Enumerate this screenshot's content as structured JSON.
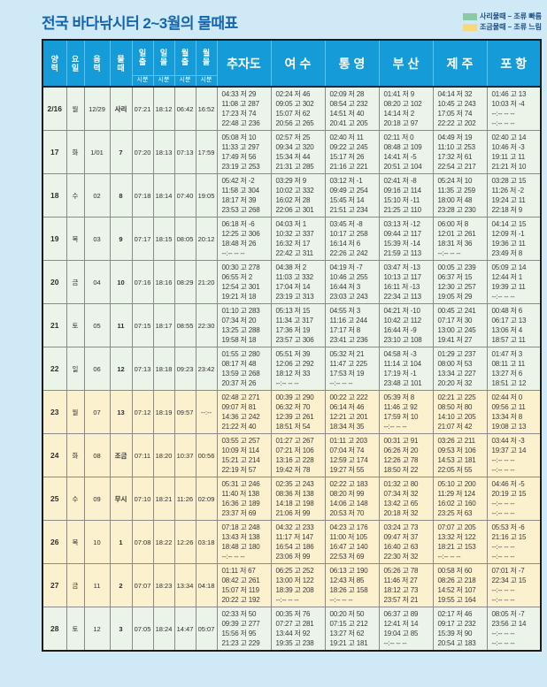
{
  "page": {
    "title": "전국 바다낚시터 2~3월의 물때표",
    "legend": [
      {
        "label": "사리물때 – 조류 빠름",
        "color": "#8bcba4"
      },
      {
        "label": "조금물때 – 조류 느림",
        "color": "#f7d87b"
      }
    ]
  },
  "table": {
    "left_headers": [
      "양력",
      "요일",
      "음력",
      "물때",
      "일출",
      "일몰",
      "월출",
      "월몰"
    ],
    "sub_header": "시분",
    "locations": [
      "추자도",
      "여 수",
      "통 영",
      "부 산",
      "제 주",
      "포 항"
    ],
    "location_keys": [
      "chujado",
      "yeosu",
      "tongyeong",
      "busan",
      "jeju",
      "pohang"
    ],
    "rows": [
      {
        "date": "2/16",
        "day": "월",
        "lunar": "12/29",
        "mulddae": "사리",
        "sunrise": "07:21",
        "sunset": "18:12",
        "moonrise": "06:42",
        "moonset": "16:52",
        "tint": "green",
        "tides": [
          [
            "04:33 저 29",
            "11:08 고 287",
            "17:23 저 74",
            "22:48 고 236"
          ],
          [
            "02:24 저 46",
            "09:05 고 302",
            "15:07 저 62",
            "20:56 고 265"
          ],
          [
            "02:09 저 28",
            "08:54 고 232",
            "14:51 저 40",
            "20:41 고 205"
          ],
          [
            "01:41 저 9",
            "08:20 고 102",
            "14:14 저 2",
            "20:18 고 97"
          ],
          [
            "04:14 저 32",
            "10:45 고 243",
            "17:05 저 74",
            "22:22 고 202"
          ],
          [
            "01:46 고 13",
            "10:03 저 -4",
            "--:-- -- --",
            "--:-- -- --"
          ]
        ]
      },
      {
        "date": "17",
        "day": "화",
        "lunar": "1/01",
        "mulddae": "7",
        "sunrise": "07:20",
        "sunset": "18:13",
        "moonrise": "07:13",
        "moonset": "17:59",
        "tint": "green",
        "tides": [
          [
            "05:08 저 10",
            "11:33 고 297",
            "17:49 저 56",
            "23:19 고 253"
          ],
          [
            "02:57 저 25",
            "09:34 고 320",
            "15:34 저 44",
            "21:31 고 285"
          ],
          [
            "02:40 저 11",
            "09:22 고 245",
            "15:17 저 26",
            "21:16 고 221"
          ],
          [
            "02:11 저 0",
            "08:48 고 109",
            "14:41 저 -5",
            "20:51 고 104"
          ],
          [
            "04:49 저 19",
            "11:10 고 253",
            "17:32 저 61",
            "22:54 고 217"
          ],
          [
            "02:40 고 14",
            "10:46 저 -3",
            "19:11 고 11",
            "21:21 저 10"
          ]
        ]
      },
      {
        "date": "18",
        "day": "수",
        "lunar": "02",
        "mulddae": "8",
        "sunrise": "07:18",
        "sunset": "18:14",
        "moonrise": "07:40",
        "moonset": "19:05",
        "tint": "green",
        "tides": [
          [
            "05:42 저 -2",
            "11:58 고 304",
            "18:17 저 39",
            "23:53 고 268"
          ],
          [
            "03:29 저 9",
            "10:02 고 332",
            "16:02 저 28",
            "22:06 고 301"
          ],
          [
            "03:12 저 -1",
            "09:49 고 254",
            "15:45 저 14",
            "21:51 고 234"
          ],
          [
            "02:41 저 -8",
            "09:16 고 114",
            "15:10 저 -11",
            "21:25 고 110"
          ],
          [
            "05:24 저 10",
            "11:35 고 259",
            "18:00 저 48",
            "23:28 고 230"
          ],
          [
            "03:28 고 15",
            "11:26 저 -2",
            "19:24 고 11",
            "22:18 저 9"
          ]
        ]
      },
      {
        "date": "19",
        "day": "목",
        "lunar": "03",
        "mulddae": "9",
        "sunrise": "07:17",
        "sunset": "18:15",
        "moonrise": "08:05",
        "moonset": "20:12",
        "tint": "green",
        "tides": [
          [
            "06:18 저 -6",
            "12:25 고 306",
            "18:48 저 26",
            "--:-- -- --"
          ],
          [
            "04:03 저 1",
            "10:32 고 337",
            "16:32 저 17",
            "22:42 고 311"
          ],
          [
            "03:45 저 -8",
            "10:17 고 258",
            "16:14 저 6",
            "22:26 고 242"
          ],
          [
            "03:13 저 -12",
            "09:44 고 117",
            "15:39 저 -14",
            "21:59 고 113"
          ],
          [
            "06:00 저 8",
            "12:01 고 261",
            "18:31 저 36",
            "--:-- -- --"
          ],
          [
            "04:14 고 15",
            "12:09 저 -1",
            "19:36 고 11",
            "23:49 저 8"
          ]
        ]
      },
      {
        "date": "20",
        "day": "금",
        "lunar": "04",
        "mulddae": "10",
        "sunrise": "07:16",
        "sunset": "18:16",
        "moonrise": "08:29",
        "moonset": "21:20",
        "tint": "green",
        "tides": [
          [
            "00:30 고 278",
            "06:55 저 2",
            "12:54 고 301",
            "19:21 저 18"
          ],
          [
            "04:38 저 2",
            "11:03 고 332",
            "17:04 저 14",
            "23:19 고 313"
          ],
          [
            "04:19 저 -7",
            "10:46 고 255",
            "16:44 저 3",
            "23:03 고 243"
          ],
          [
            "03:47 저 -13",
            "10:13 고 117",
            "16:11 저 -13",
            "22:34 고 113"
          ],
          [
            "00:05 고 239",
            "06:37 저 15",
            "12:30 고 257",
            "19:05 저 29"
          ],
          [
            "05:09 고 14",
            "12:44 저 1",
            "19:39 고 11",
            "--:-- -- --"
          ]
        ]
      },
      {
        "date": "21",
        "day": "토",
        "lunar": "05",
        "mulddae": "11",
        "sunrise": "07:15",
        "sunset": "18:17",
        "moonrise": "08:55",
        "moonset": "22:30",
        "tint": "green",
        "tides": [
          [
            "01:10 고 283",
            "07:34 저 20",
            "13:25 고 288",
            "19:58 저 18"
          ],
          [
            "05:13 저 15",
            "11:34 고 317",
            "17:36 저 19",
            "23:57 고 306"
          ],
          [
            "04:55 저 3",
            "11:16 고 244",
            "17:17 저 8",
            "23:41 고 236"
          ],
          [
            "04:21 저 -10",
            "10:42 고 112",
            "16:44 저 -9",
            "23:10 고 108"
          ],
          [
            "00:45 고 241",
            "07:17 저 30",
            "13:00 고 245",
            "19:41 저 27"
          ],
          [
            "00:48 저 6",
            "06:17 고 13",
            "13:06 저 4",
            "18:57 고 11"
          ]
        ]
      },
      {
        "date": "22",
        "day": "일",
        "lunar": "06",
        "mulddae": "12",
        "sunrise": "07:13",
        "sunset": "18:18",
        "moonrise": "09:23",
        "moonset": "23:42",
        "tint": "green",
        "tides": [
          [
            "01:55 고 280",
            "08:17 저 48",
            "13:59 고 268",
            "20:37 저 26"
          ],
          [
            "05:51 저 39",
            "12:06 고 292",
            "18:12 저 33",
            "--:-- -- --"
          ],
          [
            "05:32 저 21",
            "11:47 고 225",
            "17:53 저 19",
            "--:-- -- --"
          ],
          [
            "04:58 저 -3",
            "11:14 고 104",
            "17:19 저 -1",
            "23:48 고 101"
          ],
          [
            "01:29 고 237",
            "08:00 저 53",
            "13:34 고 227",
            "20:20 저 32"
          ],
          [
            "01:47 저 3",
            "08:11 고 11",
            "13:27 저 6",
            "18:51 고 12"
          ]
        ]
      },
      {
        "date": "23",
        "day": "월",
        "lunar": "07",
        "mulddae": "13",
        "sunrise": "07:12",
        "sunset": "18:19",
        "moonrise": "09:57",
        "moonset": "--:--",
        "tint": "cream",
        "tides": [
          [
            "02:48 고 271",
            "09:07 저 81",
            "14:36 고 242",
            "21:22 저 40"
          ],
          [
            "00:39 고 290",
            "06:32 저 70",
            "12:39 고 261",
            "18:51 저 54"
          ],
          [
            "00:22 고 222",
            "06:14 저 46",
            "12:21 고 201",
            "18:34 저 35"
          ],
          [
            "05:39 저 8",
            "11:46 고 92",
            "17:59 저 10",
            "--:-- -- --"
          ],
          [
            "02:21 고 225",
            "08:50 저 80",
            "14:10 고 205",
            "21:07 저 42"
          ],
          [
            "02:44 저 0",
            "09:56 고 11",
            "13:34 저 8",
            "19:08 고 13"
          ]
        ]
      },
      {
        "date": "24",
        "day": "화",
        "lunar": "08",
        "mulddae": "조금",
        "sunrise": "07:11",
        "sunset": "18:20",
        "moonrise": "10:37",
        "moonset": "00:56",
        "tint": "cream",
        "tides": [
          [
            "03:55 고 257",
            "10:09 저 114",
            "15:21 고 214",
            "22:19 저 57"
          ],
          [
            "01:27 고 267",
            "07:21 저 106",
            "13:16 고 228",
            "19:42 저 78"
          ],
          [
            "01:11 고 203",
            "07:04 저 74",
            "12:59 고 174",
            "19:27 저 55"
          ],
          [
            "00:31 고 91",
            "06:26 저 20",
            "12:26 고 78",
            "18:50 저 22"
          ],
          [
            "03:26 고 211",
            "09:53 저 106",
            "14:53 고 181",
            "22:05 저 55"
          ],
          [
            "03:44 저 -3",
            "19:37 고 14",
            "--:-- -- --",
            "--:-- -- --"
          ]
        ]
      },
      {
        "date": "25",
        "day": "수",
        "lunar": "09",
        "mulddae": "무시",
        "sunrise": "07:10",
        "sunset": "18:21",
        "moonrise": "11:26",
        "moonset": "02:09",
        "tint": "cream",
        "tides": [
          [
            "05:31 고 246",
            "11:40 저 138",
            "16:36 고 189",
            "23:37 저 69"
          ],
          [
            "02:35 고 243",
            "08:36 저 138",
            "14:18 고 198",
            "21:06 저 99"
          ],
          [
            "02:22 고 183",
            "08:20 저 99",
            "14:06 고 148",
            "20:53 저 70"
          ],
          [
            "01:32 고 80",
            "07:34 저 32",
            "13:42 고 65",
            "20:18 저 32"
          ],
          [
            "05:10 고 200",
            "11:29 저 124",
            "16:02 고 160",
            "23:25 저 63"
          ],
          [
            "04:46 저 -5",
            "20:19 고 15",
            "--:-- -- --",
            "--:-- -- --"
          ]
        ]
      },
      {
        "date": "26",
        "day": "목",
        "lunar": "10",
        "mulddae": "1",
        "sunrise": "07:08",
        "sunset": "18:22",
        "moonrise": "12:26",
        "moonset": "03:18",
        "tint": "cream",
        "tides": [
          [
            "07:18 고 248",
            "13:43 저 138",
            "18:48 고 180",
            "--:-- -- --"
          ],
          [
            "04:32 고 233",
            "11:17 저 147",
            "16:54 고 186",
            "23:06 저 99"
          ],
          [
            "04:23 고 176",
            "11:00 저 105",
            "16:47 고 140",
            "22:53 저 69"
          ],
          [
            "03:24 고 73",
            "09:47 저 37",
            "16:40 고 63",
            "22:30 저 32"
          ],
          [
            "07:07 고 205",
            "13:32 저 122",
            "18:21 고 153",
            "--:-- -- --"
          ],
          [
            "05:53 저 -6",
            "21:16 고 15",
            "--:-- -- --",
            "--:-- -- --"
          ]
        ]
      },
      {
        "date": "27",
        "day": "금",
        "lunar": "11",
        "mulddae": "2",
        "sunrise": "07:07",
        "sunset": "18:23",
        "moonrise": "13:34",
        "moonset": "04:18",
        "tint": "cream",
        "tides": [
          [
            "01:11 저 67",
            "08:42 고 261",
            "15:07 저 119",
            "20:22 고 192"
          ],
          [
            "06:25 고 252",
            "13:00 저 122",
            "18:39 고 208",
            "--:-- -- --"
          ],
          [
            "06:13 고 190",
            "12:43 저 85",
            "18:26 고 158",
            "--:-- -- --"
          ],
          [
            "05:26 고 78",
            "11:46 저 27",
            "18:12 고 73",
            "23:57 저 21"
          ],
          [
            "00:58 저 60",
            "08:26 고 218",
            "14:52 저 107",
            "19:55 고 164"
          ],
          [
            "07:01 저 -7",
            "22:34 고 15",
            "--:-- -- --",
            "--:-- -- --"
          ]
        ]
      },
      {
        "date": "28",
        "day": "토",
        "lunar": "12",
        "mulddae": "3",
        "sunrise": "07:05",
        "sunset": "18:24",
        "moonrise": "14:47",
        "moonset": "05:07",
        "tint": "green",
        "tides": [
          [
            "02:33 저 50",
            "09:39 고 277",
            "15:56 저 95",
            "21:23 고 229"
          ],
          [
            "00:35 저 76",
            "07:27 고 281",
            "13:44 저 92",
            "19:35 고 238"
          ],
          [
            "00:20 저 50",
            "07:15 고 212",
            "13:27 저 62",
            "19:21 고 181"
          ],
          [
            "06:37 고 89",
            "12:41 저 14",
            "19:04 고 85",
            "--:-- -- --"
          ],
          [
            "02:17 저 46",
            "09:17 고 232",
            "15:39 저 90",
            "20:54 고 183"
          ],
          [
            "08:05 저 -7",
            "23:56 고 14",
            "--:-- -- --",
            "--:-- -- --"
          ]
        ]
      }
    ]
  }
}
